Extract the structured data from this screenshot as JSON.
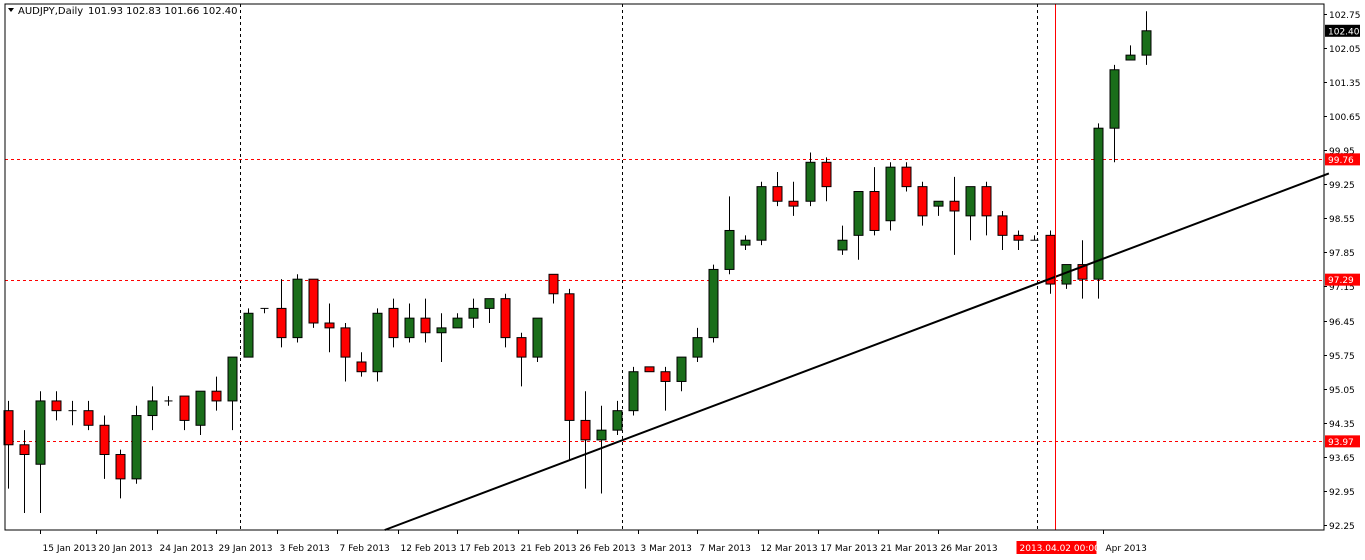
{
  "header": {
    "symbol_label": "AUDJPY,Daily",
    "ohlc_label": "101.93 102.83 101.66 102.40"
  },
  "colors": {
    "bull": "#1a6e1a",
    "bear": "#ff0000",
    "wick": "#000000",
    "level_line": "#ff0000",
    "trend_line": "#000000",
    "grid": "#000000",
    "background": "#ffffff"
  },
  "chart_data": {
    "type": "candlestick",
    "symbol": "AUDJPY",
    "timeframe": "Daily",
    "ylim": [
      92.15,
      102.95
    ],
    "y_ticks": [
      "102.75",
      "102.05",
      "101.35",
      "100.65",
      "99.95",
      "99.25",
      "98.55",
      "97.85",
      "97.15",
      "96.45",
      "95.75",
      "95.05",
      "94.35",
      "93.65",
      "92.95",
      "92.25"
    ],
    "x_ticks": [
      {
        "label": "15 Jan 2013",
        "bar": 2
      },
      {
        "label": "20 Jan 2013",
        "bar": 5.5
      },
      {
        "label": "24 Jan 2013",
        "bar": 9.3
      },
      {
        "label": "29 Jan 2013",
        "bar": 13
      },
      {
        "label": "3 Feb 2013",
        "bar": 16.8
      },
      {
        "label": "7 Feb 2013",
        "bar": 20.5
      },
      {
        "label": "12 Feb 2013",
        "bar": 24.3
      },
      {
        "label": "17 Feb 2013",
        "bar": 28
      },
      {
        "label": "21 Feb 2013",
        "bar": 31.8
      },
      {
        "label": "26 Feb 2013",
        "bar": 35.5
      },
      {
        "label": "3 Mar 2013",
        "bar": 39.3
      },
      {
        "label": "7 Mar 2013",
        "bar": 43
      },
      {
        "label": "12 Mar 2013",
        "bar": 46.8
      },
      {
        "label": "17 Mar 2013",
        "bar": 50.5
      },
      {
        "label": "21 Mar 2013",
        "bar": 54.3
      },
      {
        "label": "26 Mar 2013",
        "bar": 58
      },
      {
        "label": "Apr 2013",
        "bar": 68.3
      }
    ],
    "cursor_label": "2013.04.02 00:00",
    "cursor_bar": 65.3,
    "period_separators": [
      14.5,
      38.3,
      64.2
    ],
    "price_levels": [
      {
        "label": "99.76",
        "price": 99.76
      },
      {
        "label": "97.29",
        "price": 97.29
      },
      {
        "label": "93.97",
        "price": 93.97
      }
    ],
    "current_price_label": "102.40",
    "current_price": 102.4,
    "trendline": {
      "bar1": 23.5,
      "price1": 92.15,
      "bar2": 82.4,
      "price2": 99.47
    },
    "candles": [
      {
        "o": 94.6,
        "h": 94.8,
        "l": 93.0,
        "c": 93.9
      },
      {
        "o": 93.9,
        "h": 94.2,
        "l": 92.5,
        "c": 93.7
      },
      {
        "o": 93.5,
        "h": 95.0,
        "l": 92.5,
        "c": 94.8
      },
      {
        "o": 94.8,
        "h": 95.0,
        "l": 94.4,
        "c": 94.6
      },
      {
        "o": 94.6,
        "h": 94.8,
        "l": 94.3,
        "c": 94.6
      },
      {
        "o": 94.6,
        "h": 94.8,
        "l": 94.2,
        "c": 94.3
      },
      {
        "o": 94.3,
        "h": 94.5,
        "l": 93.2,
        "c": 93.7
      },
      {
        "o": 93.7,
        "h": 93.8,
        "l": 92.8,
        "c": 93.2
      },
      {
        "o": 93.2,
        "h": 94.7,
        "l": 93.1,
        "c": 94.5
      },
      {
        "o": 94.5,
        "h": 95.1,
        "l": 94.2,
        "c": 94.8
      },
      {
        "o": 94.8,
        "h": 94.9,
        "l": 94.7,
        "c": 94.8
      },
      {
        "o": 94.9,
        "h": 94.9,
        "l": 94.2,
        "c": 94.4
      },
      {
        "o": 94.3,
        "h": 95.0,
        "l": 94.1,
        "c": 95.0
      },
      {
        "o": 95.0,
        "h": 95.3,
        "l": 94.6,
        "c": 94.8
      },
      {
        "o": 94.8,
        "h": 95.7,
        "l": 94.2,
        "c": 95.7
      },
      {
        "o": 95.7,
        "h": 96.7,
        "l": 95.7,
        "c": 96.6
      },
      {
        "o": 96.7,
        "h": 96.7,
        "l": 96.6,
        "c": 96.7
      },
      {
        "o": 96.7,
        "h": 97.3,
        "l": 95.9,
        "c": 96.1
      },
      {
        "o": 96.1,
        "h": 97.4,
        "l": 96.0,
        "c": 97.3
      },
      {
        "o": 97.3,
        "h": 97.3,
        "l": 96.3,
        "c": 96.4
      },
      {
        "o": 96.4,
        "h": 96.8,
        "l": 95.8,
        "c": 96.3
      },
      {
        "o": 96.3,
        "h": 96.4,
        "l": 95.2,
        "c": 95.7
      },
      {
        "o": 95.6,
        "h": 95.8,
        "l": 95.3,
        "c": 95.4
      },
      {
        "o": 95.4,
        "h": 96.7,
        "l": 95.2,
        "c": 96.6
      },
      {
        "o": 96.7,
        "h": 96.9,
        "l": 95.9,
        "c": 96.1
      },
      {
        "o": 96.1,
        "h": 96.8,
        "l": 96.0,
        "c": 96.5
      },
      {
        "o": 96.5,
        "h": 96.9,
        "l": 96.0,
        "c": 96.2
      },
      {
        "o": 96.2,
        "h": 96.6,
        "l": 95.6,
        "c": 96.3
      },
      {
        "o": 96.3,
        "h": 96.6,
        "l": 96.3,
        "c": 96.5
      },
      {
        "o": 96.5,
        "h": 96.9,
        "l": 96.3,
        "c": 96.7
      },
      {
        "o": 96.7,
        "h": 96.9,
        "l": 96.4,
        "c": 96.9
      },
      {
        "o": 96.9,
        "h": 97.0,
        "l": 95.9,
        "c": 96.1
      },
      {
        "o": 96.1,
        "h": 96.2,
        "l": 95.1,
        "c": 95.7
      },
      {
        "o": 95.7,
        "h": 96.5,
        "l": 95.6,
        "c": 96.5
      },
      {
        "o": 97.4,
        "h": 97.4,
        "l": 96.8,
        "c": 97.0
      },
      {
        "o": 97.0,
        "h": 97.1,
        "l": 93.6,
        "c": 94.4
      },
      {
        "o": 94.4,
        "h": 95.0,
        "l": 93.0,
        "c": 94.0
      },
      {
        "o": 94.0,
        "h": 94.7,
        "l": 92.9,
        "c": 94.2
      },
      {
        "o": 94.2,
        "h": 94.8,
        "l": 94.1,
        "c": 94.6
      },
      {
        "o": 94.6,
        "h": 95.5,
        "l": 94.5,
        "c": 95.4
      },
      {
        "o": 95.5,
        "h": 95.5,
        "l": 95.4,
        "c": 95.4
      },
      {
        "o": 95.4,
        "h": 95.5,
        "l": 94.6,
        "c": 95.2
      },
      {
        "o": 95.2,
        "h": 95.7,
        "l": 95.0,
        "c": 95.7
      },
      {
        "o": 95.7,
        "h": 96.3,
        "l": 95.6,
        "c": 96.1
      },
      {
        "o": 96.1,
        "h": 97.6,
        "l": 96.0,
        "c": 97.5
      },
      {
        "o": 97.5,
        "h": 99.0,
        "l": 97.4,
        "c": 98.3
      },
      {
        "o": 98.0,
        "h": 98.2,
        "l": 97.9,
        "c": 98.1
      },
      {
        "o": 98.1,
        "h": 99.3,
        "l": 98.0,
        "c": 99.2
      },
      {
        "o": 99.2,
        "h": 99.5,
        "l": 98.8,
        "c": 98.9
      },
      {
        "o": 98.9,
        "h": 99.3,
        "l": 98.6,
        "c": 98.8
      },
      {
        "o": 98.9,
        "h": 99.9,
        "l": 98.8,
        "c": 99.7
      },
      {
        "o": 99.7,
        "h": 99.8,
        "l": 98.9,
        "c": 99.2
      },
      {
        "o": 97.9,
        "h": 98.4,
        "l": 97.8,
        "c": 98.1
      },
      {
        "o": 98.2,
        "h": 99.1,
        "l": 97.7,
        "c": 99.1
      },
      {
        "o": 99.1,
        "h": 99.6,
        "l": 98.2,
        "c": 98.3
      },
      {
        "o": 98.5,
        "h": 99.7,
        "l": 98.3,
        "c": 99.6
      },
      {
        "o": 99.6,
        "h": 99.7,
        "l": 99.1,
        "c": 99.2
      },
      {
        "o": 99.2,
        "h": 99.3,
        "l": 98.4,
        "c": 98.6
      },
      {
        "o": 98.8,
        "h": 98.9,
        "l": 98.6,
        "c": 98.9
      },
      {
        "o": 98.9,
        "h": 99.4,
        "l": 97.8,
        "c": 98.7
      },
      {
        "o": 98.6,
        "h": 99.2,
        "l": 98.1,
        "c": 99.2
      },
      {
        "o": 99.2,
        "h": 99.3,
        "l": 98.2,
        "c": 98.6
      },
      {
        "o": 98.6,
        "h": 98.7,
        "l": 97.9,
        "c": 98.2
      },
      {
        "o": 98.2,
        "h": 98.3,
        "l": 97.9,
        "c": 98.1
      },
      {
        "o": 98.1,
        "h": 98.2,
        "l": 98.1,
        "c": 98.1
      },
      {
        "o": 98.2,
        "h": 98.3,
        "l": 97.0,
        "c": 97.2
      },
      {
        "o": 97.2,
        "h": 97.6,
        "l": 97.1,
        "c": 97.6
      },
      {
        "o": 97.6,
        "h": 98.1,
        "l": 96.9,
        "c": 97.3
      },
      {
        "o": 97.3,
        "h": 100.5,
        "l": 96.9,
        "c": 100.4
      },
      {
        "o": 100.4,
        "h": 101.7,
        "l": 99.7,
        "c": 101.6
      },
      {
        "o": 101.8,
        "h": 102.1,
        "l": 101.8,
        "c": 101.9
      },
      {
        "o": 101.9,
        "h": 102.8,
        "l": 101.7,
        "c": 102.4
      }
    ]
  }
}
